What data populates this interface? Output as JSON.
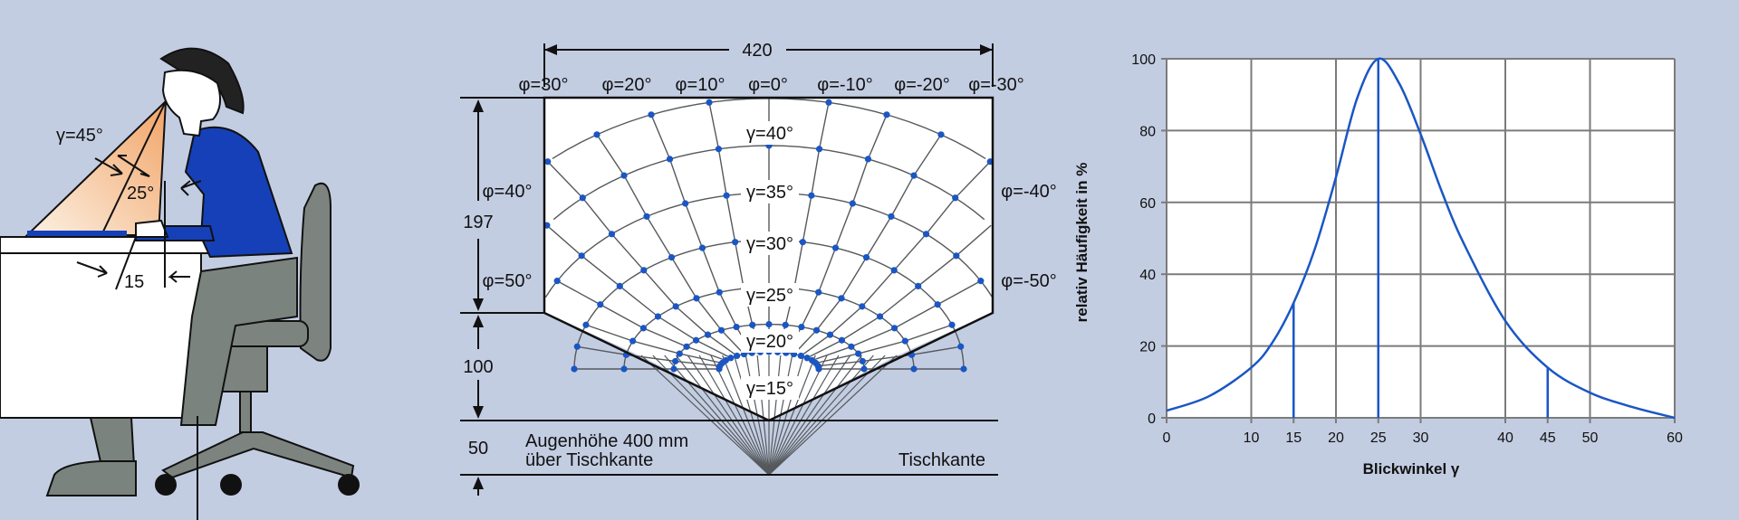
{
  "colors": {
    "background": "#c3cde2",
    "accent_blue": "#1a56c4",
    "shirt_blue": "#1540b8",
    "trousers_gray": "#7b837e",
    "chair_gray": "#7d847f",
    "grid_gray": "#7b7b7b",
    "cone_orange": "#f4b98a"
  },
  "person_figure": {
    "gamma_label": "γ=45°",
    "angle_label": "25°",
    "distance_label": "15"
  },
  "field_diagram": {
    "width_label": "420",
    "top_phi_labels": [
      "φ=30°",
      "φ=20°",
      "φ=10°",
      "φ=0°",
      "φ=-10°",
      "φ=-20°",
      "φ=-30°"
    ],
    "left_phi_labels": [
      "φ=40°",
      "φ=50°"
    ],
    "right_phi_labels": [
      "φ=-40°",
      "φ=-50°"
    ],
    "gamma_labels": [
      "γ=40°",
      "γ=35°",
      "γ=30°",
      "γ=25°",
      "γ=20°",
      "γ=15°"
    ],
    "dim_197": "197",
    "dim_100": "100",
    "dim_50": "50",
    "eye_height_line1": "Augenhöhe 400 mm",
    "eye_height_line2": "über Tischkante",
    "table_edge": "Tischkante"
  },
  "chart_data": {
    "type": "line",
    "ylabel": "relativ  Häufigkeit in %",
    "xlabel": "Blickwinkel γ",
    "xlim": [
      0,
      60
    ],
    "ylim": [
      0,
      100
    ],
    "x_ticks": [
      0,
      10,
      15,
      20,
      25,
      30,
      40,
      45,
      50,
      60
    ],
    "y_ticks": [
      0,
      20,
      40,
      60,
      80,
      100
    ],
    "grid": true,
    "x": [
      0,
      5,
      10,
      12.5,
      15,
      17.5,
      20,
      22.5,
      25,
      27.5,
      30,
      32.5,
      35,
      40,
      45,
      50,
      55,
      60
    ],
    "values": [
      2,
      6,
      14,
      21,
      32,
      47,
      67,
      89,
      100,
      93,
      79,
      63,
      49,
      27,
      14,
      7,
      3,
      0
    ],
    "markers": [
      {
        "x": 15,
        "y": 32
      },
      {
        "x": 25,
        "y": 100
      },
      {
        "x": 45,
        "y": 14
      }
    ]
  }
}
